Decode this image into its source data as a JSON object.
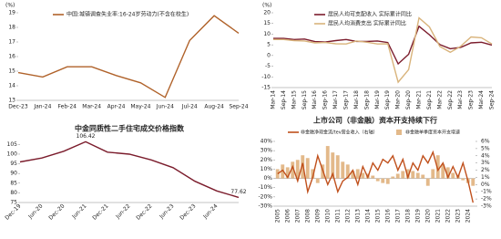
{
  "chart_data": [
    {
      "type": "line",
      "y_label": "(%)",
      "categories": [
        "Dec-23",
        "Jan-24",
        "Feb-24",
        "Mar-24",
        "Apr-24",
        "May-24",
        "Jun-24",
        "Jul-24",
        "Aug-24",
        "Sep-24"
      ],
      "series": [
        {
          "name": "中国:城镇调查失业率:16-24岁劳动力(不含在校生)",
          "color": "#b0622a",
          "values": [
            14.9,
            14.6,
            15.3,
            15.3,
            14.7,
            14.2,
            13.2,
            17.1,
            18.8,
            17.6
          ]
        }
      ],
      "ylim": [
        13,
        19
      ],
      "yticks": [
        13,
        14,
        15,
        16,
        17,
        18,
        19
      ]
    },
    {
      "type": "line",
      "y_label": "(%)",
      "categories": [
        "Mar-14",
        "Sep-14",
        "Mar-15",
        "Sep-15",
        "Mar-16",
        "Sep-16",
        "Mar-17",
        "Sep-17",
        "Mar-18",
        "Sep-18",
        "Mar-19",
        "Sep-19",
        "Mar-20",
        "Sep-20",
        "Mar-21",
        "Sep-21",
        "Mar-22",
        "Sep-22",
        "Mar-23",
        "Sep-23",
        "Mar-24",
        "Sep-24"
      ],
      "series": [
        {
          "name": "居民人均可支配收入 实际累计同比",
          "color": "#7b1c2c",
          "values": [
            8.0,
            8.0,
            7.5,
            7.7,
            6.5,
            6.3,
            7.0,
            7.5,
            6.6,
            6.6,
            6.8,
            6.1,
            -3.9,
            0.6,
            13.7,
            9.7,
            5.1,
            3.2,
            3.8,
            5.9,
            6.2,
            4.9
          ]
        },
        {
          "name": "居民人均消费支出 实际累计同比",
          "color": "#d9b47c",
          "values": [
            7.5,
            7.5,
            7.0,
            6.8,
            5.9,
            6.1,
            5.5,
            5.4,
            6.8,
            6.2,
            5.4,
            5.5,
            -12.5,
            -6.6,
            17.6,
            13.4,
            4.2,
            1.5,
            4.3,
            8.7,
            8.3,
            5.4
          ]
        }
      ],
      "ylim": [
        -15,
        20
      ],
      "yticks": [
        -15,
        -10,
        -5,
        0,
        5,
        10,
        15,
        20
      ]
    },
    {
      "type": "line",
      "title": "中金同质性二手住宅成交价格指数",
      "categories": [
        "Dec-19",
        "Jun-20",
        "Dec-20",
        "Jun-21",
        "Dec-21",
        "Jun-22",
        "Dec-22",
        "Jun-23",
        "Dec-23",
        "Jun-24",
        null
      ],
      "series": [
        {
          "name": "中金同质性二手住宅成交价格指数",
          "color": "#7b1c2c",
          "values": [
            96,
            98,
            101.5,
            106.42,
            101,
            100,
            97,
            93,
            86,
            81,
            77.62
          ],
          "labeled_points": [
            3,
            10
          ]
        }
      ],
      "ylim": [
        75,
        108
      ],
      "yticks": [
        75,
        80,
        85,
        90,
        95,
        100,
        105
      ]
    },
    {
      "type": "bar",
      "title": "上市公司（非金融）资本开支持续下行",
      "categories": [
        "2005",
        null,
        "2006",
        null,
        "2007",
        null,
        "2008",
        null,
        "2009",
        null,
        "2010",
        null,
        "2011",
        null,
        "2012",
        null,
        "2013",
        null,
        "2014",
        null,
        "2015",
        null,
        "2016",
        null,
        "2017",
        null,
        "2018",
        null,
        "2019",
        null,
        "2020",
        null,
        "2021",
        null,
        "2022",
        null,
        "2023",
        null,
        "2024",
        null
      ],
      "series": [
        {
          "name": "非金融净现金流/tev营业收入（右轴）",
          "type": "line",
          "axis": "y2",
          "color": "#c0501c",
          "values": [
            1.5,
            2,
            1,
            2.5,
            0.5,
            3,
            -1,
            1,
            4,
            2,
            0,
            1.5,
            -1,
            0.5,
            1,
            2,
            0,
            2.5,
            1,
            3,
            2,
            3.5,
            3,
            4,
            2,
            3.5,
            1,
            3,
            2,
            4,
            3,
            4.5,
            2,
            3,
            1,
            2.5,
            1,
            3,
            0.5,
            -2.5
          ]
        },
        {
          "name": "非金融单季度资本开支增速",
          "type": "bar",
          "color": "#e3b98a",
          "values": [
            10,
            15,
            12,
            18,
            20,
            25,
            22,
            10,
            -5,
            15,
            35,
            28,
            25,
            18,
            15,
            8,
            10,
            6,
            5,
            3,
            -3,
            -5,
            -6,
            2,
            5,
            8,
            10,
            8,
            6,
            4,
            -8,
            10,
            25,
            15,
            12,
            6,
            4,
            -2,
            -5,
            -8
          ]
        }
      ],
      "ylim": [
        -30,
        40
      ],
      "yticks": [
        {
          "value": -30,
          "label": "-30%"
        },
        {
          "value": -20,
          "label": "-20%"
        },
        {
          "value": -10,
          "label": "-10%"
        },
        {
          "value": 0,
          "label": "0%"
        },
        {
          "value": 10,
          "label": "10%"
        },
        {
          "value": 20,
          "label": "20%"
        },
        {
          "value": 30,
          "label": "30%"
        },
        {
          "value": 40,
          "label": "40%"
        }
      ],
      "y2lim": [
        -3,
        6
      ],
      "y2ticks": [
        {
          "value": -3,
          "label": "-3%"
        },
        {
          "value": -2,
          "label": "-2%"
        },
        {
          "value": -1,
          "label": "-1%"
        },
        {
          "value": 0,
          "label": "0%"
        },
        {
          "value": 1,
          "label": "1%"
        },
        {
          "value": 2,
          "label": "2%"
        },
        {
          "value": 3,
          "label": "3%"
        },
        {
          "value": 4,
          "label": "4%"
        },
        {
          "value": 5,
          "label": "5%"
        },
        {
          "value": 6,
          "label": "6%"
        }
      ]
    }
  ]
}
